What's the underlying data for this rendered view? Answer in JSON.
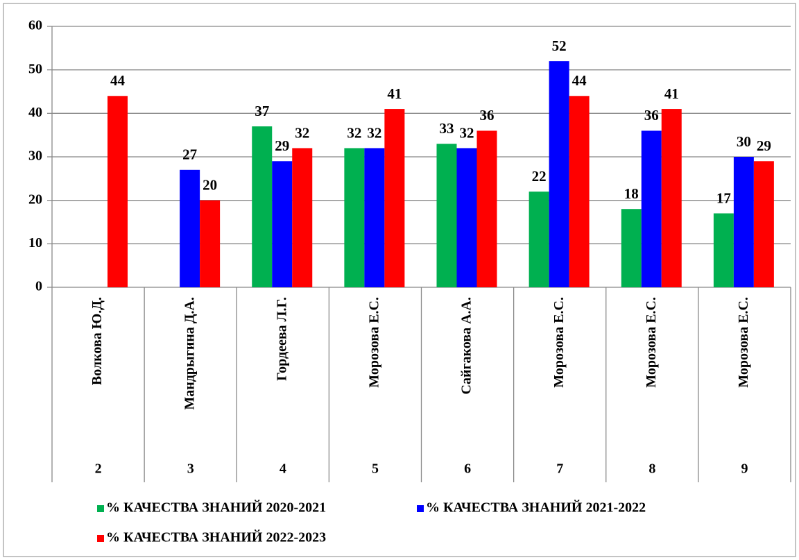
{
  "chart_data": {
    "type": "bar",
    "categories": [
      "Волкова Ю.Д.",
      "Мандрыгина Д.А.",
      "Гордеева Л.Г.",
      "Морозова Е.С.",
      "Сайгакова А.А.",
      "Морозова Е.С.",
      "Морозова Е.С.",
      "Морозова Е.С."
    ],
    "category_groups": [
      "2",
      "3",
      "4",
      "5",
      "6",
      "7",
      "8",
      "9"
    ],
    "series": [
      {
        "name": "% КАЧЕСТВА ЗНАНИЙ 2020-2021",
        "color": "#00b050",
        "values": [
          null,
          null,
          37,
          32,
          33,
          22,
          18,
          17
        ]
      },
      {
        "name": "% КАЧЕСТВА ЗНАНИЙ 2021-2022",
        "color": "#0000ff",
        "values": [
          null,
          27,
          29,
          32,
          32,
          52,
          36,
          30
        ]
      },
      {
        "name": "% КАЧЕСТВА ЗНАНИЙ 2022-2023",
        "color": "#ff0000",
        "values": [
          44,
          20,
          32,
          41,
          36,
          44,
          41,
          29
        ]
      }
    ],
    "ylim": [
      0,
      60
    ],
    "yticks": [
      0,
      10,
      20,
      30,
      40,
      50,
      60
    ],
    "grid": true,
    "legend": "bottom"
  }
}
